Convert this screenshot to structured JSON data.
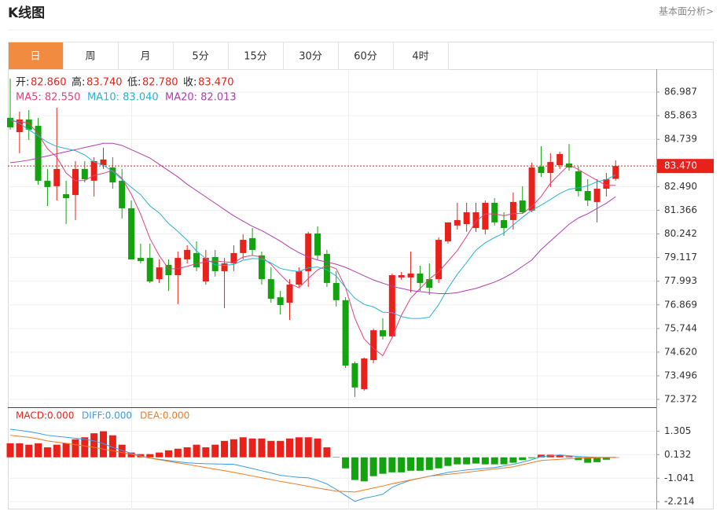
{
  "header": {
    "title": "K线图",
    "link": "基本面分析>"
  },
  "tabs": [
    "日",
    "周",
    "月",
    "5分",
    "15分",
    "30分",
    "60分",
    "4时"
  ],
  "active_tab": 0,
  "chart_data": [
    {
      "type": "candlestick",
      "open": [
        85.76,
        85.08,
        85.68,
        85.38,
        82.77,
        82.51,
        82.13,
        82.09,
        83.33,
        82.77,
        83.51,
        83.4,
        82.77,
        81.46,
        79.1,
        79.1,
        78.09,
        78.77,
        78.28,
        79.03,
        79.33,
        77.98,
        79.14,
        78.47,
        78.84,
        79.33,
        80.04,
        79.22,
        78.09,
        77.23,
        76.97,
        77.83,
        78.47,
        80.26,
        79.29,
        77.91,
        77.09,
        74.09,
        72.86,
        74.24,
        75.66,
        75.37,
        78.17,
        78.17,
        78.36,
        78.09,
        78.09,
        79.89,
        80.64,
        80.71,
        80.52,
        80.45,
        81.72,
        80.9,
        80.9,
        81.83,
        81.35,
        83.44,
        83.14,
        83.51,
        83.59,
        83.22,
        82.28,
        81.76,
        82.39,
        82.86
      ],
      "high": [
        87.63,
        86.06,
        86.13,
        85.76,
        83.33,
        86.24,
        82.77,
        83.7,
        83.7,
        83.89,
        84.34,
        83.89,
        83.33,
        81.83,
        79.78,
        79.78,
        79.03,
        79.03,
        79.4,
        79.7,
        79.89,
        79.48,
        79.48,
        79.1,
        79.7,
        80.22,
        80.52,
        79.4,
        78.65,
        77.53,
        78.09,
        78.65,
        80.34,
        80.6,
        79.48,
        78.47,
        77.23,
        74.17,
        74.36,
        75.74,
        76.23,
        78.36,
        78.43,
        79.4,
        78.73,
        78.84,
        80.08,
        80.79,
        81.72,
        81.72,
        81.72,
        81.83,
        81.94,
        81.27,
        82.21,
        82.51,
        83.63,
        84.41,
        84.08,
        84.15,
        84.52,
        83.44,
        82.84,
        82.84,
        83.14,
        83.74
      ],
      "low": [
        85.2,
        84.08,
        84.71,
        82.58,
        81.57,
        81.83,
        80.71,
        80.9,
        82.69,
        82.02,
        83.33,
        82.39,
        80.97,
        79.03,
        78.84,
        77.91,
        77.91,
        77.53,
        76.9,
        78.84,
        78.47,
        77.83,
        78.21,
        76.71,
        78.47,
        79.03,
        79.22,
        77.83,
        76.97,
        76.41,
        76.15,
        77.72,
        77.72,
        79.03,
        77.72,
        76.79,
        73.87,
        72.49,
        72.79,
        74.09,
        75.22,
        75.29,
        78.06,
        77.46,
        77.53,
        77.35,
        77.91,
        79.78,
        80.45,
        80.34,
        80.34,
        80.22,
        80.64,
        80.15,
        80.45,
        81.2,
        81.27,
        82.95,
        82.47,
        83.33,
        83.25,
        82.02,
        81.57,
        80.79,
        82.02,
        82.78
      ],
      "close": [
        85.31,
        85.68,
        85.2,
        82.77,
        82.47,
        83.33,
        81.94,
        83.33,
        82.84,
        83.7,
        83.78,
        82.69,
        81.46,
        79.03,
        78.95,
        77.98,
        78.65,
        78.28,
        79.1,
        79.48,
        78.65,
        79.1,
        78.47,
        78.84,
        79.33,
        79.96,
        79.48,
        78.09,
        77.16,
        76.86,
        77.83,
        78.47,
        80.26,
        79.22,
        77.91,
        77.09,
        73.98,
        72.94,
        74.32,
        75.66,
        75.37,
        78.28,
        78.28,
        78.36,
        77.91,
        77.68,
        79.96,
        80.79,
        80.9,
        81.27,
        81.27,
        81.72,
        80.79,
        80.52,
        81.76,
        81.27,
        83.4,
        83.14,
        83.66,
        84.04,
        83.4,
        82.28,
        81.83,
        82.39,
        82.84,
        83.47
      ],
      "up_color": "#e8221b",
      "down_color": "#12a30f",
      "ohlc_legend": [
        {
          "label": "开:",
          "value_label": "82.860"
        },
        {
          "label": "高:",
          "value_label": "83.740"
        },
        {
          "label": "低:",
          "value_label": "82.780"
        },
        {
          "label": "收:",
          "value_label": "83.470"
        }
      ],
      "series": [
        {
          "name": "MA5: 82.550",
          "color": "#e2407e",
          "values": [
            85.6,
            85.6,
            85.5,
            85.0,
            84.29,
            83.89,
            83.14,
            82.77,
            82.78,
            83.03,
            83.12,
            83.27,
            82.89,
            82.13,
            81.18,
            80.02,
            79.21,
            78.58,
            78.59,
            78.7,
            78.83,
            78.92,
            78.96,
            78.91,
            78.88,
            79.14,
            79.22,
            79.14,
            78.8,
            78.31,
            77.88,
            77.68,
            78.12,
            78.53,
            78.74,
            78.59,
            77.69,
            76.23,
            75.25,
            74.8,
            74.45,
            75.31,
            76.38,
            77.19,
            77.64,
            78.1,
            78.44,
            78.94,
            79.45,
            80.12,
            80.84,
            81.19,
            81.19,
            81.11,
            81.21,
            81.21,
            81.55,
            82.02,
            82.65,
            83.1,
            83.53,
            83.3,
            83.04,
            82.79,
            82.55,
            82.55
          ]
        },
        {
          "name": "MA10: 83.040",
          "color": "#27b3d6",
          "values": [
            85.7,
            85.5,
            85.2,
            84.9,
            84.6,
            84.4,
            84.3,
            84.2,
            84.0,
            83.66,
            83.51,
            83.21,
            82.83,
            82.46,
            82.11,
            81.57,
            81.24,
            80.74,
            80.36,
            79.94,
            79.43,
            79.07,
            78.77,
            78.75,
            78.79,
            78.99,
            79.07,
            79.05,
            78.86,
            78.6,
            78.51,
            78.45,
            78.63,
            78.67,
            78.53,
            78.24,
            77.69,
            77.18,
            76.89,
            76.77,
            76.52,
            76.5,
            76.31,
            76.22,
            76.22,
            76.28,
            76.88,
            77.66,
            78.32,
            78.88,
            79.47,
            79.82,
            80.07,
            80.28,
            80.67,
            81.03,
            81.37,
            81.61,
            81.88,
            82.16,
            82.37,
            82.43,
            82.53,
            82.72,
            82.83,
            83.04
          ]
        },
        {
          "name": "MA20: 82.013",
          "color": "#b03db3",
          "values": [
            83.63,
            83.68,
            83.75,
            83.85,
            83.95,
            84.05,
            84.15,
            84.25,
            84.35,
            84.45,
            84.55,
            84.55,
            84.45,
            84.25,
            84.05,
            83.85,
            83.55,
            83.25,
            82.95,
            82.6,
            82.3,
            82.0,
            81.7,
            81.4,
            81.1,
            80.85,
            80.6,
            80.4,
            80.15,
            79.9,
            79.6,
            79.35,
            79.15,
            79.0,
            78.9,
            78.8,
            78.65,
            78.45,
            78.25,
            78.05,
            77.9,
            77.75,
            77.65,
            77.55,
            77.5,
            77.45,
            77.4,
            77.4,
            77.45,
            77.55,
            77.65,
            77.8,
            77.95,
            78.15,
            78.4,
            78.7,
            79.0,
            79.5,
            79.9,
            80.3,
            80.7,
            81.0,
            81.2,
            81.45,
            81.7,
            82.013
          ]
        }
      ],
      "ylim": [
        72,
        88
      ],
      "yticks": [
        86.987,
        85.863,
        84.739,
        {
          "value": 82.49,
          "label": "82.490"
        },
        81.366,
        80.242,
        79.117,
        77.993,
        76.869,
        75.744,
        {
          "value": 74.62,
          "label": "74.620"
        },
        73.496,
        72.372
      ],
      "grid": true,
      "last_price": {
        "value": 83.47,
        "label": "83.470"
      }
    },
    {
      "type": "macd",
      "ylim": [
        -2.6,
        2.5
      ],
      "yticks": [
        1.305,
        0.132,
        -1.041,
        -2.214
      ],
      "grid": true,
      "series": [
        {
          "name": "MACD:0.000",
          "style": "bar",
          "color": "#e8221b",
          "down_color": "#12a30f",
          "values": [
            0.7,
            0.7,
            0.63,
            0.7,
            0.5,
            0.63,
            0.7,
            0.9,
            1.0,
            1.2,
            1.3,
            1.1,
            0.63,
            0.24,
            0.16,
            0.16,
            0.24,
            0.35,
            0.43,
            0.5,
            0.63,
            0.5,
            0.63,
            0.82,
            0.9,
            1.0,
            0.94,
            0.94,
            0.82,
            0.82,
            0.94,
            1.0,
            1.0,
            0.94,
            0.5,
            0.02,
            -0.55,
            -1.13,
            -1.2,
            -0.94,
            -0.82,
            -0.75,
            -0.75,
            -0.67,
            -0.67,
            -0.63,
            -0.55,
            -0.43,
            -0.35,
            -0.35,
            -0.31,
            -0.35,
            -0.35,
            -0.35,
            -0.27,
            -0.14,
            -0.04,
            0.13,
            0.13,
            0.1,
            0.05,
            -0.14,
            -0.27,
            -0.24,
            -0.12,
            0
          ]
        },
        {
          "name": "DIFF:0.000",
          "style": "line",
          "color": "#3b9be4",
          "values": [
            1.4,
            1.35,
            1.28,
            1.2,
            1.1,
            1.05,
            1.0,
            0.95,
            0.9,
            0.82,
            0.68,
            0.5,
            0.35,
            0.2,
            0.08,
            -0.04,
            -0.1,
            -0.16,
            -0.22,
            -0.27,
            -0.3,
            -0.32,
            -0.33,
            -0.34,
            -0.35,
            -0.45,
            -0.56,
            -0.67,
            -0.78,
            -0.9,
            -0.95,
            -1.0,
            -1.02,
            -1.15,
            -1.33,
            -1.6,
            -1.9,
            -2.2,
            -2.04,
            -1.95,
            -1.84,
            -1.5,
            -1.3,
            -1.14,
            -1.04,
            -0.94,
            -0.85,
            -0.75,
            -0.69,
            -0.63,
            -0.59,
            -0.55,
            -0.51,
            -0.43,
            -0.35,
            -0.24,
            -0.12,
            0.04,
            0.08,
            0.12,
            0.08,
            0.04,
            0.02,
            0,
            0,
            0
          ]
        },
        {
          "name": "DEA:0.000",
          "style": "line",
          "color": "#f07a22",
          "values": [
            1.1,
            1.05,
            1.0,
            0.92,
            0.82,
            0.76,
            0.7,
            0.63,
            0.57,
            0.5,
            0.41,
            0.33,
            0.24,
            0.15,
            0.06,
            -0.04,
            -0.12,
            -0.2,
            -0.28,
            -0.35,
            -0.43,
            -0.51,
            -0.59,
            -0.67,
            -0.75,
            -0.84,
            -0.93,
            -1.02,
            -1.11,
            -1.2,
            -1.28,
            -1.36,
            -1.45,
            -1.53,
            -1.61,
            -1.69,
            -1.71,
            -1.73,
            -1.63,
            -1.53,
            -1.43,
            -1.32,
            -1.22,
            -1.13,
            -1.04,
            -0.94,
            -0.89,
            -0.85,
            -0.8,
            -0.75,
            -0.69,
            -0.64,
            -0.58,
            -0.53,
            -0.47,
            -0.37,
            -0.26,
            -0.16,
            -0.13,
            -0.1,
            -0.07,
            -0.04,
            -0.03,
            -0.02,
            -0.01,
            0
          ]
        }
      ]
    }
  ]
}
